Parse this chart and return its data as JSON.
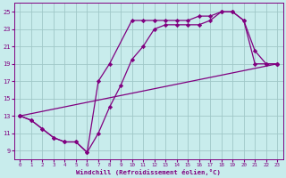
{
  "xlabel": "Windchill (Refroidissement éolien,°C)",
  "bg_color": "#c8ecec",
  "line_color": "#800080",
  "grid_color": "#a0c8c8",
  "xlim": [
    -0.5,
    23.5
  ],
  "ylim": [
    8,
    26
  ],
  "yticks": [
    9,
    11,
    13,
    15,
    17,
    19,
    21,
    23,
    25
  ],
  "xticks": [
    0,
    1,
    2,
    3,
    4,
    5,
    6,
    7,
    8,
    9,
    10,
    11,
    12,
    13,
    14,
    15,
    16,
    17,
    18,
    19,
    20,
    21,
    22,
    23
  ],
  "line1_x": [
    0,
    1,
    2,
    3,
    4,
    5,
    6,
    7,
    8,
    9,
    10,
    11,
    12,
    13,
    14,
    15,
    16,
    17,
    18,
    19,
    20,
    21,
    22,
    23
  ],
  "line1_y": [
    13,
    12.5,
    11.5,
    10.5,
    10.0,
    10.0,
    8.8,
    11.0,
    14.0,
    16.5,
    19.5,
    21.0,
    23.0,
    23.5,
    23.5,
    23.5,
    23.5,
    24.0,
    25.0,
    25.0,
    24.0,
    20.5,
    19.0,
    19.0
  ],
  "line2_x": [
    0,
    1,
    2,
    3,
    4,
    5,
    6,
    7,
    8,
    10,
    11,
    12,
    13,
    14,
    15,
    16,
    17,
    18,
    19,
    20,
    21,
    22,
    23
  ],
  "line2_y": [
    13,
    12.5,
    11.5,
    10.5,
    10.0,
    10.0,
    8.8,
    17.0,
    19.0,
    24.0,
    24.0,
    24.0,
    24.0,
    24.0,
    24.0,
    24.5,
    24.5,
    25.0,
    25.0,
    24.0,
    19.0,
    19.0,
    19.0
  ],
  "line3_x": [
    0,
    23
  ],
  "line3_y": [
    13,
    19
  ]
}
